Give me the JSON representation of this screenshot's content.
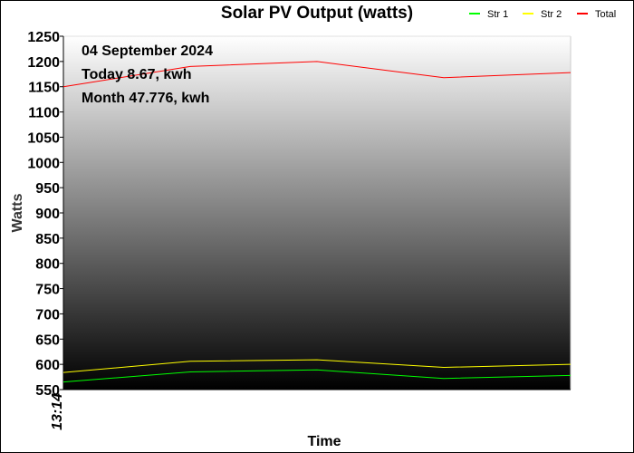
{
  "chart_data": {
    "type": "line",
    "title": "Solar PV Output (watts)",
    "xlabel": "Time",
    "ylabel": "Watts",
    "ylim": [
      550,
      1250
    ],
    "y_ticks": [
      "550",
      "600",
      "650",
      "700",
      "750",
      "800",
      "850",
      "900",
      "950",
      "1000",
      "1050",
      "1100",
      "1150",
      "1200",
      "1250"
    ],
    "x_ticks": [
      "13:14"
    ],
    "x": [
      0,
      1,
      2,
      3,
      4
    ],
    "series": [
      {
        "name": "Str 1",
        "color": "#00ff00",
        "values": [
          565,
          585,
          589,
          572,
          578
        ]
      },
      {
        "name": "Str 2",
        "color": "#ffff00",
        "values": [
          584,
          606,
          609,
          594,
          600
        ]
      },
      {
        "name": "Total",
        "color": "#ff0000",
        "values": [
          1150,
          1190,
          1200,
          1168,
          1178
        ]
      }
    ],
    "annotations": [
      "04 September 2024",
      "Today 8.67, kwh",
      "Month 47.776, kwh"
    ],
    "legend_position": "top-right",
    "grid": false
  }
}
